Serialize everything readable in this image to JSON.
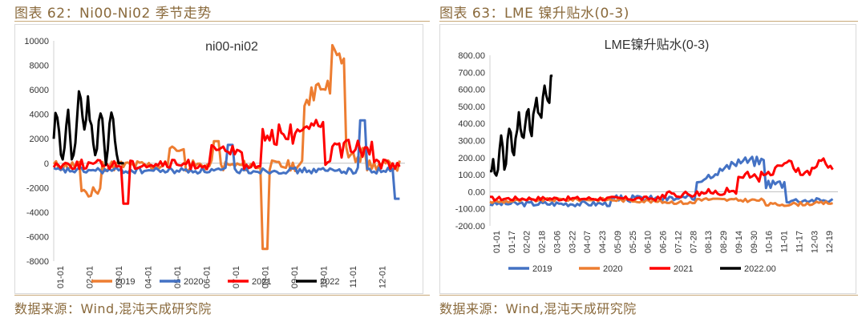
{
  "figures": [
    {
      "title": "图表 62：Ni00-Ni02 季节走势",
      "source": "数据来源：Wind,混沌天成研究院"
    },
    {
      "title": "图表 63：LME 镍升贴水(0-3)",
      "source": "数据来源：Wind,混沌天成研究院"
    }
  ],
  "chart_data": [
    {
      "type": "line",
      "title": "ni00-ni02",
      "ylim": [
        -8000,
        10000
      ],
      "yticks": [
        "10000",
        "8000",
        "6000",
        "4000",
        "2000",
        "0",
        "-2000",
        "-4000",
        "-6000",
        "-8000"
      ],
      "xticks": [
        "01-01",
        "02-01",
        "03-01",
        "04-01",
        "05-01",
        "06-01",
        "07-01",
        "08-01",
        "09-01",
        "10-01",
        "11-01",
        "12-01"
      ],
      "legend_position": "bottom",
      "series": [
        {
          "name": "2019",
          "color": "#ED7D31"
        },
        {
          "name": "2020",
          "color": "#4472C4"
        },
        {
          "name": "2021",
          "color": "#FF0000"
        },
        {
          "name": "2022",
          "color": "#000000"
        }
      ]
    },
    {
      "type": "line",
      "title": "LME镍升贴水(0-3)",
      "ylim": [
        -200,
        800
      ],
      "yticks": [
        "800.00",
        "700.00",
        "600.00",
        "500.00",
        "400.00",
        "300.00",
        "200.00",
        "100.00",
        "0.00",
        "-100.00",
        "-200.00"
      ],
      "xticks": [
        "01-01",
        "01-17",
        "02-02",
        "02-18",
        "03-06",
        "03-22",
        "04-07",
        "04-23",
        "05-09",
        "05-25",
        "06-10",
        "06-26",
        "07-12",
        "07-28",
        "08-13",
        "08-29",
        "09-14",
        "09-30",
        "10-16",
        "11-01",
        "11-17",
        "12-03",
        "12-19"
      ],
      "legend_position": "bottom",
      "series": [
        {
          "name": "2019",
          "color": "#4472C4"
        },
        {
          "name": "2020",
          "color": "#ED7D31"
        },
        {
          "name": "2021",
          "color": "#FF0000"
        },
        {
          "name": "2022.00",
          "color": "#000000"
        }
      ]
    }
  ]
}
